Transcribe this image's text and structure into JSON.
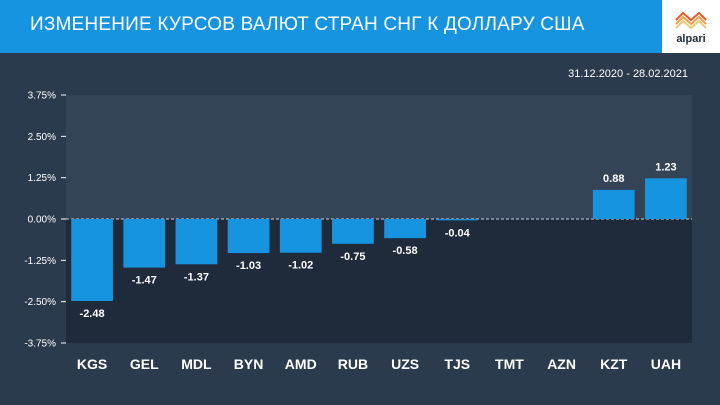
{
  "header": {
    "title": "ИЗМЕНЕНИЕ КУРСОВ ВАЛЮТ СТРАН СНГ К ДОЛЛАРУ США",
    "logo_text": "alpari"
  },
  "date_range": "31.12.2020  - 28.02.2021",
  "colors": {
    "header": "#1694e0",
    "background": "#2c3a4d",
    "plot_upper": "#344356",
    "plot_lower": "#1f2b3b",
    "bar": "#1694e0"
  },
  "chart_data": {
    "type": "bar",
    "categories": [
      "KGS",
      "GEL",
      "MDL",
      "BYN",
      "AMD",
      "RUB",
      "UZS",
      "TJS",
      "TMT",
      "AZN",
      "KZT",
      "UAH"
    ],
    "values": [
      -2.48,
      -1.47,
      -1.37,
      -1.03,
      -1.02,
      -0.75,
      -0.58,
      -0.04,
      0,
      0,
      0.88,
      1.23
    ],
    "data_labels": [
      "-2.48",
      "-1.47",
      "-1.37",
      "-1.03",
      "-1.02",
      "-0.75",
      "-0.58",
      "-0.04",
      "",
      "",
      "0.88",
      "1.23"
    ],
    "yticks": [
      3.75,
      2.5,
      1.25,
      0,
      -1.25,
      -2.5,
      -3.75
    ],
    "ytick_labels": [
      "3.75%",
      "2.50%",
      "1.25%",
      "0.00%",
      "-1.25%",
      "-2.50%",
      "-3.75%"
    ],
    "ylim": [
      -3.75,
      3.75
    ],
    "xlabel": "",
    "ylabel": "",
    "grid": false,
    "legend": "none"
  }
}
